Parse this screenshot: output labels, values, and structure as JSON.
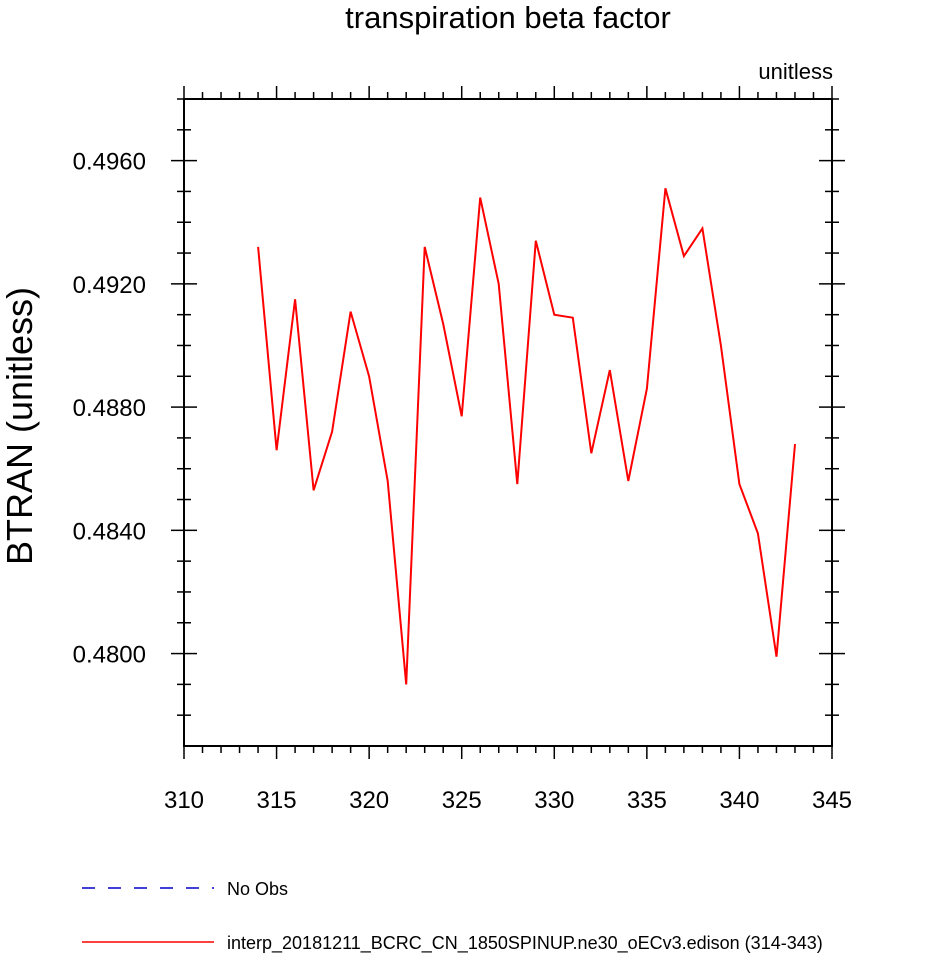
{
  "chart_data": {
    "type": "line",
    "title": "transpiration beta factor",
    "units_label": "unitless",
    "ylabel": "BTRAN  (unitless)",
    "xlabel": "",
    "xlim": [
      310,
      345
    ],
    "ylim": [
      0.477,
      0.498
    ],
    "x_ticks": [
      310,
      315,
      320,
      325,
      330,
      335,
      340,
      345
    ],
    "x_tick_labels": [
      "310",
      "315",
      "320",
      "325",
      "330",
      "335",
      "340",
      "345"
    ],
    "y_ticks": [
      0.48,
      0.484,
      0.488,
      0.492,
      0.496
    ],
    "y_tick_labels": [
      "0.4800",
      "0.4840",
      "0.4880",
      "0.4920",
      "0.4960"
    ],
    "grid": false,
    "legend_position": "bottom",
    "series": [
      {
        "name": "No Obs",
        "color": "#0000cc",
        "style": "dashed",
        "x": [],
        "y": []
      },
      {
        "name": "interp_20181211_BCRC_CN_1850SPINUP.ne30_oECv3.edison (314-343)",
        "color": "#ff0000",
        "style": "solid",
        "x": [
          314,
          315,
          316,
          317,
          318,
          319,
          320,
          321,
          322,
          323,
          324,
          325,
          326,
          327,
          328,
          329,
          330,
          331,
          332,
          333,
          334,
          335,
          336,
          337,
          338,
          339,
          340,
          341,
          342,
          343
        ],
        "y": [
          0.4932,
          0.4866,
          0.4915,
          0.4853,
          0.4872,
          0.4911,
          0.489,
          0.4856,
          0.479,
          0.4932,
          0.4907,
          0.4877,
          0.4948,
          0.492,
          0.4855,
          0.4934,
          0.491,
          0.4909,
          0.4865,
          0.4892,
          0.4856,
          0.4886,
          0.4951,
          0.4929,
          0.4938,
          0.49,
          0.4855,
          0.4839,
          0.4799,
          0.4868
        ]
      }
    ]
  }
}
